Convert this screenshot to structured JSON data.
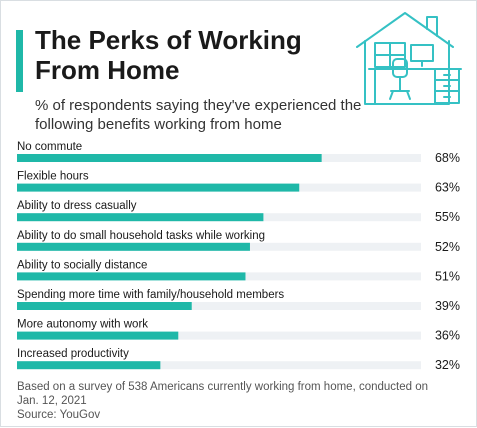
{
  "header": {
    "title": "The Perks of Working From Home",
    "subtitle": "% of respondents saying they've experienced the following benefits working from home"
  },
  "footer": {
    "note": "Based on a survey of 538 Americans currently working from home, conducted on Jan. 12, 2021",
    "source": "Source: YouGov"
  },
  "colors": {
    "accent": "#1fb8a8",
    "track": "#eef1f4",
    "icon": "#35c1c4"
  },
  "chart_data": {
    "type": "bar",
    "orientation": "horizontal",
    "categories": [
      "No commute",
      "Flexible hours",
      "Ability to dress casually",
      "Ability to do small household tasks while working",
      "Ability to socially distance",
      "Spending more time with family/household members",
      "More autonomy with work",
      "Increased productivity"
    ],
    "values": [
      68,
      63,
      55,
      52,
      51,
      39,
      36,
      32
    ],
    "value_labels": [
      "68%",
      "63%",
      "55%",
      "52%",
      "51%",
      "39%",
      "36%",
      "32%"
    ],
    "title": "The Perks of Working From Home",
    "subtitle": "% of respondents saying they've experienced the following benefits working from home",
    "xlim": [
      0,
      100
    ],
    "grid": false,
    "legend": "none"
  }
}
